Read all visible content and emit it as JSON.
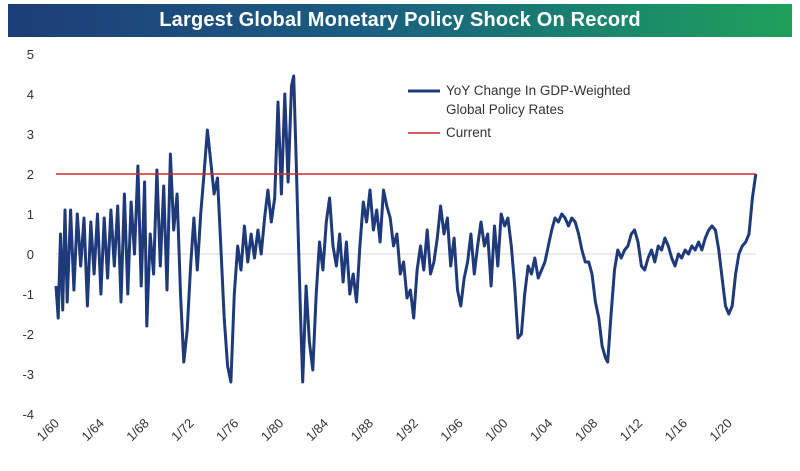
{
  "title": "Largest Global Monetary Policy Shock On Record",
  "chart_data": {
    "type": "line",
    "title": "Largest Global Monetary Policy Shock On Record",
    "xlabel": "",
    "ylabel": "",
    "xlim": [
      1960,
      2022.6
    ],
    "ylim": [
      -4,
      5
    ],
    "yticks": [
      -4,
      -3,
      -2,
      -1,
      0,
      1,
      2,
      3,
      4,
      5
    ],
    "xtick_labels": [
      "1/60",
      "1/64",
      "1/68",
      "1/72",
      "1/76",
      "1/80",
      "1/84",
      "1/88",
      "1/92",
      "1/96",
      "1/00",
      "1/04",
      "1/08",
      "1/12",
      "1/16",
      "1/20"
    ],
    "xtick_years": [
      1960,
      1964,
      1968,
      1972,
      1976,
      1980,
      1984,
      1988,
      1992,
      1996,
      2000,
      2004,
      2008,
      2012,
      2016,
      2020
    ],
    "grid": false,
    "legend_position": "top-right",
    "series": [
      {
        "name": "YoY Change In GDP-Weighted Global Policy Rates",
        "color": "#1f3a7a",
        "points": [
          [
            1960.0,
            -0.8
          ],
          [
            1960.2,
            -1.6
          ],
          [
            1960.4,
            0.5
          ],
          [
            1960.6,
            -1.4
          ],
          [
            1960.8,
            1.1
          ],
          [
            1961.0,
            -1.2
          ],
          [
            1961.3,
            1.1
          ],
          [
            1961.6,
            -0.9
          ],
          [
            1961.9,
            1.0
          ],
          [
            1962.2,
            -0.3
          ],
          [
            1962.5,
            0.9
          ],
          [
            1962.8,
            -1.3
          ],
          [
            1963.1,
            0.8
          ],
          [
            1963.4,
            -0.5
          ],
          [
            1963.7,
            1.0
          ],
          [
            1964.0,
            -1.0
          ],
          [
            1964.3,
            0.9
          ],
          [
            1964.6,
            -0.6
          ],
          [
            1964.9,
            1.1
          ],
          [
            1965.2,
            -0.3
          ],
          [
            1965.5,
            1.2
          ],
          [
            1965.8,
            -1.2
          ],
          [
            1966.1,
            1.5
          ],
          [
            1966.4,
            -1.0
          ],
          [
            1966.7,
            1.3
          ],
          [
            1967.0,
            0.0
          ],
          [
            1967.3,
            2.2
          ],
          [
            1967.6,
            -0.8
          ],
          [
            1967.9,
            1.8
          ],
          [
            1968.1,
            -1.8
          ],
          [
            1968.4,
            0.5
          ],
          [
            1968.7,
            -0.5
          ],
          [
            1969.0,
            2.1
          ],
          [
            1969.3,
            -0.3
          ],
          [
            1969.6,
            1.7
          ],
          [
            1969.9,
            -0.9
          ],
          [
            1970.2,
            2.5
          ],
          [
            1970.5,
            0.6
          ],
          [
            1970.8,
            1.5
          ],
          [
            1971.1,
            -1.0
          ],
          [
            1971.4,
            -2.7
          ],
          [
            1971.7,
            -1.9
          ],
          [
            1972.0,
            -0.3
          ],
          [
            1972.3,
            0.9
          ],
          [
            1972.6,
            -0.4
          ],
          [
            1972.9,
            1.0
          ],
          [
            1973.2,
            2.0
          ],
          [
            1973.5,
            3.1
          ],
          [
            1973.8,
            2.3
          ],
          [
            1974.1,
            1.5
          ],
          [
            1974.4,
            1.9
          ],
          [
            1974.7,
            0.2
          ],
          [
            1975.0,
            -1.6
          ],
          [
            1975.3,
            -2.8
          ],
          [
            1975.6,
            -3.2
          ],
          [
            1975.9,
            -1.0
          ],
          [
            1976.2,
            0.2
          ],
          [
            1976.5,
            -0.4
          ],
          [
            1976.8,
            0.7
          ],
          [
            1977.1,
            -0.2
          ],
          [
            1977.4,
            0.5
          ],
          [
            1977.7,
            -0.1
          ],
          [
            1978.0,
            0.6
          ],
          [
            1978.3,
            0.0
          ],
          [
            1978.6,
            0.9
          ],
          [
            1978.9,
            1.6
          ],
          [
            1979.2,
            0.8
          ],
          [
            1979.5,
            1.4
          ],
          [
            1979.8,
            3.8
          ],
          [
            1980.1,
            1.5
          ],
          [
            1980.4,
            4.0
          ],
          [
            1980.7,
            1.8
          ],
          [
            1981.0,
            4.2
          ],
          [
            1981.2,
            4.45
          ],
          [
            1981.4,
            2.5
          ],
          [
            1981.6,
            0.5
          ],
          [
            1981.8,
            -1.5
          ],
          [
            1982.0,
            -3.2
          ],
          [
            1982.3,
            -0.8
          ],
          [
            1982.6,
            -2.2
          ],
          [
            1982.9,
            -2.9
          ],
          [
            1983.2,
            -1.0
          ],
          [
            1983.5,
            0.3
          ],
          [
            1983.8,
            -0.4
          ],
          [
            1984.1,
            0.8
          ],
          [
            1984.4,
            1.4
          ],
          [
            1984.7,
            0.2
          ],
          [
            1985.0,
            -0.3
          ],
          [
            1985.3,
            0.5
          ],
          [
            1985.6,
            -0.7
          ],
          [
            1985.9,
            0.3
          ],
          [
            1986.2,
            -1.0
          ],
          [
            1986.5,
            -0.5
          ],
          [
            1986.8,
            -1.2
          ],
          [
            1987.1,
            0.2
          ],
          [
            1987.4,
            1.3
          ],
          [
            1987.7,
            0.8
          ],
          [
            1988.0,
            1.6
          ],
          [
            1988.3,
            0.6
          ],
          [
            1988.6,
            1.1
          ],
          [
            1988.9,
            0.3
          ],
          [
            1989.2,
            1.6
          ],
          [
            1989.5,
            1.2
          ],
          [
            1989.8,
            0.9
          ],
          [
            1990.1,
            0.2
          ],
          [
            1990.4,
            0.5
          ],
          [
            1990.7,
            -0.5
          ],
          [
            1991.0,
            -0.2
          ],
          [
            1991.3,
            -1.1
          ],
          [
            1991.6,
            -0.9
          ],
          [
            1991.9,
            -1.6
          ],
          [
            1992.2,
            -0.4
          ],
          [
            1992.5,
            0.2
          ],
          [
            1992.8,
            -0.4
          ],
          [
            1993.1,
            0.6
          ],
          [
            1993.4,
            -0.5
          ],
          [
            1993.7,
            -0.2
          ],
          [
            1994.0,
            0.4
          ],
          [
            1994.3,
            1.2
          ],
          [
            1994.6,
            0.5
          ],
          [
            1994.9,
            0.9
          ],
          [
            1995.2,
            -0.3
          ],
          [
            1995.5,
            0.4
          ],
          [
            1995.8,
            -0.9
          ],
          [
            1996.1,
            -1.3
          ],
          [
            1996.4,
            -0.6
          ],
          [
            1996.7,
            -0.2
          ],
          [
            1997.0,
            0.5
          ],
          [
            1997.3,
            -0.5
          ],
          [
            1997.6,
            0.2
          ],
          [
            1997.9,
            0.8
          ],
          [
            1998.2,
            0.2
          ],
          [
            1998.5,
            0.5
          ],
          [
            1998.8,
            -0.8
          ],
          [
            1999.1,
            0.7
          ],
          [
            1999.4,
            -0.3
          ],
          [
            1999.7,
            1.0
          ],
          [
            2000.0,
            0.7
          ],
          [
            2000.3,
            0.9
          ],
          [
            2000.6,
            0.2
          ],
          [
            2000.9,
            -0.8
          ],
          [
            2001.2,
            -2.1
          ],
          [
            2001.5,
            -2.0
          ],
          [
            2001.8,
            -1.0
          ],
          [
            2002.1,
            -0.3
          ],
          [
            2002.4,
            -0.5
          ],
          [
            2002.7,
            -0.1
          ],
          [
            2003.0,
            -0.6
          ],
          [
            2003.3,
            -0.4
          ],
          [
            2003.6,
            -0.2
          ],
          [
            2003.9,
            0.2
          ],
          [
            2004.2,
            0.6
          ],
          [
            2004.5,
            0.9
          ],
          [
            2004.8,
            0.8
          ],
          [
            2005.1,
            1.0
          ],
          [
            2005.4,
            0.9
          ],
          [
            2005.7,
            0.7
          ],
          [
            2006.0,
            0.9
          ],
          [
            2006.3,
            0.8
          ],
          [
            2006.6,
            0.5
          ],
          [
            2006.9,
            0.1
          ],
          [
            2007.2,
            -0.2
          ],
          [
            2007.5,
            -0.2
          ],
          [
            2007.8,
            -0.5
          ],
          [
            2008.1,
            -1.2
          ],
          [
            2008.4,
            -1.6
          ],
          [
            2008.7,
            -2.3
          ],
          [
            2009.0,
            -2.6
          ],
          [
            2009.2,
            -2.7
          ],
          [
            2009.5,
            -1.5
          ],
          [
            2009.8,
            -0.4
          ],
          [
            2010.1,
            0.1
          ],
          [
            2010.4,
            -0.1
          ],
          [
            2010.7,
            0.1
          ],
          [
            2011.0,
            0.2
          ],
          [
            2011.3,
            0.5
          ],
          [
            2011.6,
            0.6
          ],
          [
            2011.9,
            0.3
          ],
          [
            2012.2,
            -0.3
          ],
          [
            2012.5,
            -0.4
          ],
          [
            2012.8,
            -0.1
          ],
          [
            2013.1,
            0.1
          ],
          [
            2013.4,
            -0.2
          ],
          [
            2013.7,
            0.2
          ],
          [
            2014.0,
            0.1
          ],
          [
            2014.3,
            0.4
          ],
          [
            2014.6,
            0.2
          ],
          [
            2014.9,
            -0.1
          ],
          [
            2015.2,
            -0.3
          ],
          [
            2015.5,
            0.0
          ],
          [
            2015.8,
            -0.1
          ],
          [
            2016.1,
            0.1
          ],
          [
            2016.4,
            0.0
          ],
          [
            2016.7,
            0.2
          ],
          [
            2017.0,
            0.1
          ],
          [
            2017.3,
            0.3
          ],
          [
            2017.6,
            0.1
          ],
          [
            2017.9,
            0.4
          ],
          [
            2018.2,
            0.6
          ],
          [
            2018.5,
            0.7
          ],
          [
            2018.8,
            0.6
          ],
          [
            2019.1,
            0.1
          ],
          [
            2019.4,
            -0.6
          ],
          [
            2019.7,
            -1.3
          ],
          [
            2020.0,
            -1.5
          ],
          [
            2020.3,
            -1.3
          ],
          [
            2020.6,
            -0.5
          ],
          [
            2020.9,
            0.0
          ],
          [
            2021.2,
            0.2
          ],
          [
            2021.5,
            0.3
          ],
          [
            2021.8,
            0.5
          ],
          [
            2022.1,
            1.4
          ],
          [
            2022.4,
            2.0
          ]
        ]
      },
      {
        "name": "Current",
        "color": "#cc2b2b",
        "points": [
          [
            1960.0,
            2.0
          ],
          [
            2022.4,
            2.0
          ]
        ]
      }
    ]
  }
}
